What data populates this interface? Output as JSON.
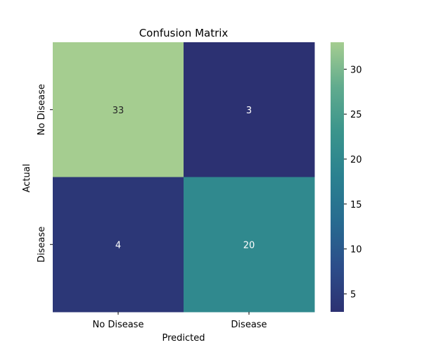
{
  "chart_data": {
    "type": "heatmap",
    "title": "Confusion Matrix",
    "xlabel": "Predicted",
    "ylabel": "Actual",
    "x_categories": [
      "No Disease",
      "Disease"
    ],
    "y_categories": [
      "No Disease",
      "Disease"
    ],
    "values": [
      [
        33,
        3
      ],
      [
        4,
        20
      ]
    ],
    "cell_labels": [
      [
        "33",
        "3"
      ],
      [
        "4",
        "20"
      ]
    ],
    "colorbar": {
      "min": 3,
      "max": 33,
      "ticks": [
        5,
        10,
        15,
        20,
        25,
        30
      ],
      "tick_labels": [
        "5",
        "10",
        "15",
        "20",
        "25",
        "30"
      ]
    },
    "colormap": "crest",
    "colormap_stops": [
      "#2c3172",
      "#2c4d8a",
      "#276b90",
      "#2a8190",
      "#3a948c",
      "#60ab8e",
      "#a5cd90"
    ],
    "legend": "colorbar-right",
    "grid": false
  }
}
